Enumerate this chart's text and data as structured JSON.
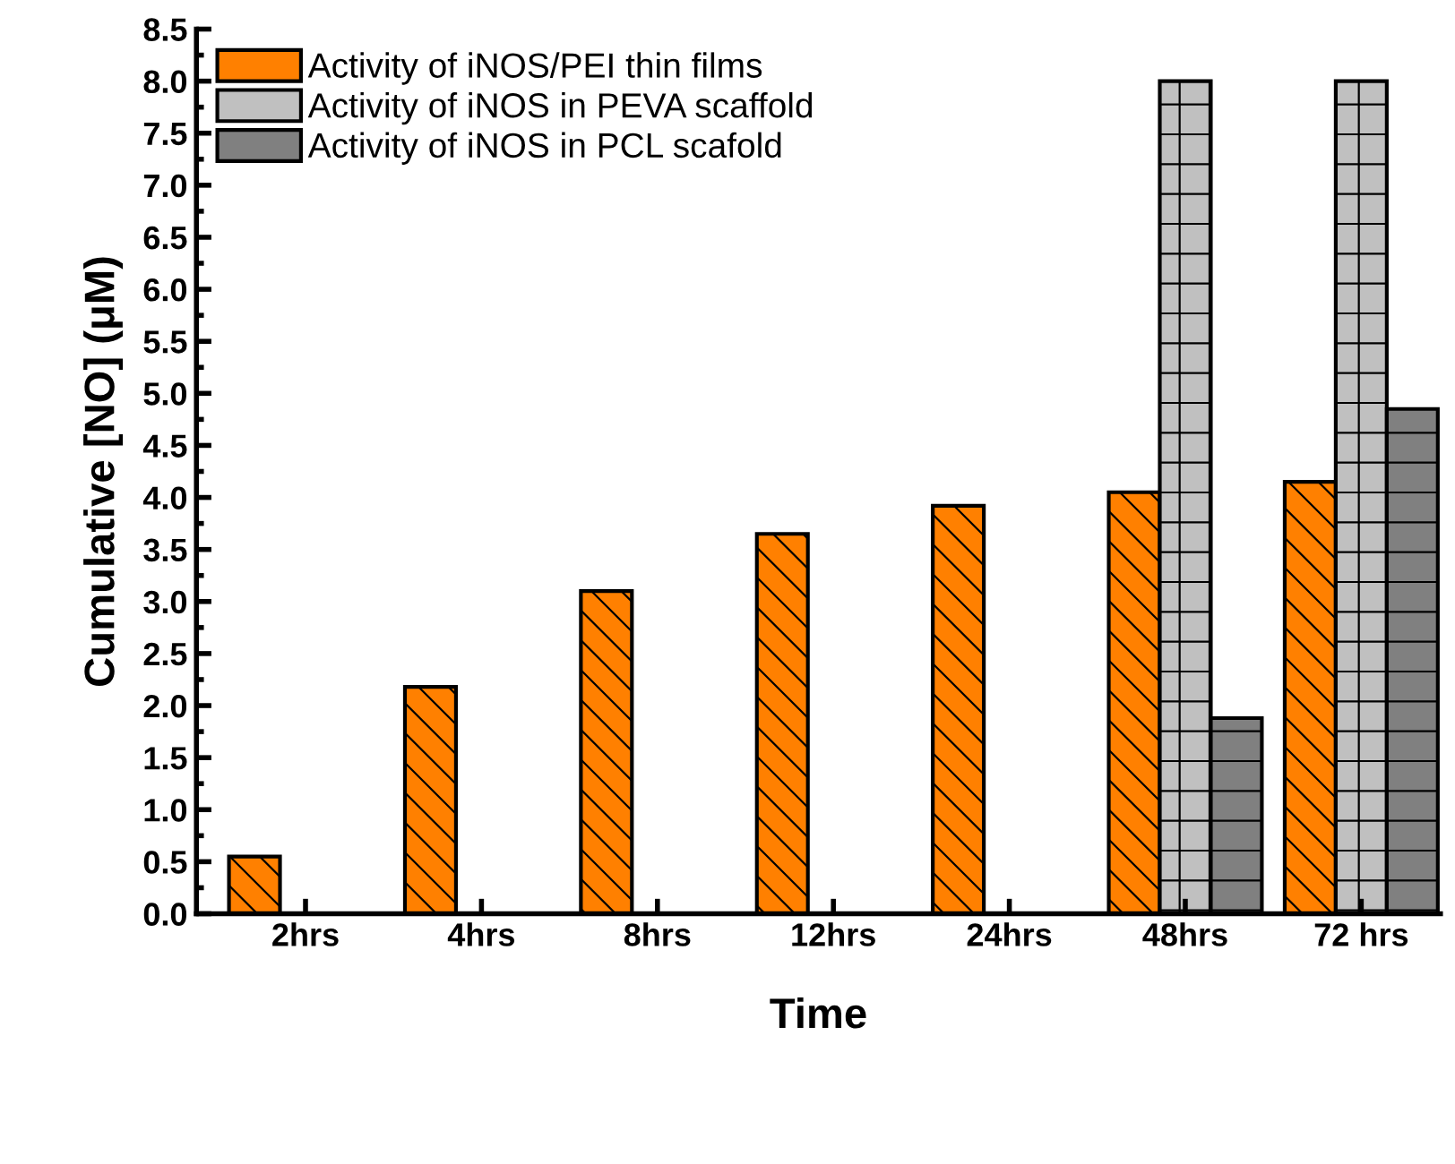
{
  "chart_data": {
    "type": "bar",
    "xlabel": "Time",
    "ylabel": "Cumulative [NO] (μM)",
    "categories": [
      "2hrs",
      "4hrs",
      "8hrs",
      "12hrs",
      "24hrs",
      "48hrs",
      "72 hrs"
    ],
    "series": [
      {
        "name": "Activity of iNOS/PEI thin films",
        "color": "#ff8000",
        "values": [
          0.55,
          2.18,
          3.1,
          3.65,
          3.92,
          4.05,
          4.15
        ]
      },
      {
        "name": "Activity of iNOS in PEVA scaffold",
        "color": "#c0c0c0",
        "values": [
          null,
          null,
          null,
          null,
          null,
          8.0,
          8.0
        ]
      },
      {
        "name": "Activity of iNOS in PCL scafold",
        "color": "#808080",
        "values": [
          null,
          null,
          null,
          null,
          null,
          1.88,
          4.85
        ]
      }
    ],
    "ylim": [
      0,
      8.5
    ],
    "yticks": [
      {
        "value": 0,
        "label": "0.0"
      },
      {
        "value": 0.5,
        "label": "0.5"
      },
      {
        "value": 1,
        "label": "1.0"
      },
      {
        "value": 1.5,
        "label": "1.5"
      },
      {
        "value": 2,
        "label": "2.0"
      },
      {
        "value": 2.5,
        "label": "2.5"
      },
      {
        "value": 3,
        "label": "3.0"
      },
      {
        "value": 3.5,
        "label": "3.5"
      },
      {
        "value": 4,
        "label": "4.0"
      },
      {
        "value": 4.5,
        "label": "4.5"
      },
      {
        "value": 5,
        "label": "5.0"
      },
      {
        "value": 5.5,
        "label": "5.5"
      },
      {
        "value": 6,
        "label": "6.0"
      },
      {
        "value": 6.5,
        "label": "6.5"
      },
      {
        "value": 7,
        "label": "7.0"
      },
      {
        "value": 7.5,
        "label": "7.5"
      },
      {
        "value": 8,
        "label": "8.0"
      },
      {
        "value": 8.5,
        "label": "8.5"
      }
    ],
    "grid": false,
    "legend": "top left"
  }
}
